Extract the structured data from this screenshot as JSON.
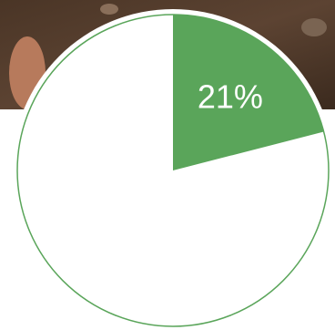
{
  "chart_data": {
    "type": "pie",
    "values": [
      21
    ],
    "value_labels": [
      "21%"
    ],
    "color": "#5aa55a"
  }
}
